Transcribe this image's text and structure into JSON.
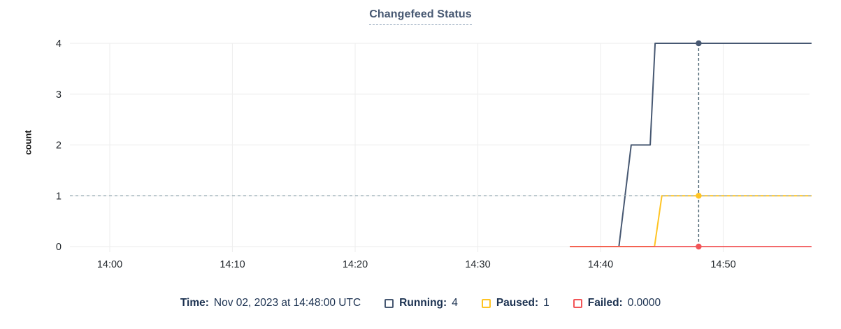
{
  "chart": {
    "title": "Changefeed Status",
    "y_label": "count",
    "legend": {
      "time_label": "Time:",
      "time_value": "Nov 02, 2023 at 14:48:00 UTC",
      "series": [
        {
          "id": "running",
          "label": "Running:",
          "value": "4",
          "color": "#475872"
        },
        {
          "id": "paused",
          "label": "Paused:",
          "value": "1",
          "color": "#ffc423"
        },
        {
          "id": "failed",
          "label": "Failed:",
          "value": "0.0000",
          "color": "#f25558"
        }
      ]
    }
  },
  "chart_data": {
    "type": "line",
    "title": "Changefeed Status",
    "xlabel": "",
    "ylabel": "count",
    "x_unit": "minutes after 14:00, Nov 02 2023 UTC",
    "x_range_minutes": [
      -3.25,
      57.25
    ],
    "ylim": [
      0,
      4
    ],
    "grid": true,
    "legend_position": "bottom",
    "x_ticks": [
      {
        "minute": 0,
        "label": "14:00"
      },
      {
        "minute": 10,
        "label": "14:10"
      },
      {
        "minute": 20,
        "label": "14:20"
      },
      {
        "minute": 30,
        "label": "14:30"
      },
      {
        "minute": 40,
        "label": "14:40"
      },
      {
        "minute": 50,
        "label": "14:50"
      }
    ],
    "y_ticks": [
      0,
      1,
      2,
      3,
      4
    ],
    "series": [
      {
        "name": "Running",
        "color": "#475872",
        "width": 2,
        "points": [
          [
            37.5,
            0
          ],
          [
            41.5,
            0
          ],
          [
            42.5,
            2
          ],
          [
            44.05,
            2
          ],
          [
            44.45,
            4
          ],
          [
            57.2,
            4
          ]
        ]
      },
      {
        "name": "Paused",
        "color": "#ffc423",
        "width": 2,
        "points": [
          [
            37.5,
            0
          ],
          [
            44.4,
            0
          ],
          [
            45.0,
            1
          ],
          [
            57.2,
            1
          ]
        ]
      },
      {
        "name": "Failed",
        "color": "#f25558",
        "width": 1.8,
        "points": [
          [
            37.5,
            0
          ],
          [
            57.2,
            0
          ]
        ]
      }
    ],
    "cursor": {
      "minute": 48,
      "time_label": "Nov 02, 2023 at 14:48:00 UTC",
      "cursor_y_value": 1,
      "values": [
        {
          "series": "Running",
          "value": 4
        },
        {
          "series": "Paused",
          "value": 1
        },
        {
          "series": "Failed",
          "value": 0
        }
      ],
      "vline_color": "#4a6472",
      "hline_color": "#9fb2ba"
    },
    "grid_color": "#efefef",
    "tick_label_color": "#24292e"
  }
}
